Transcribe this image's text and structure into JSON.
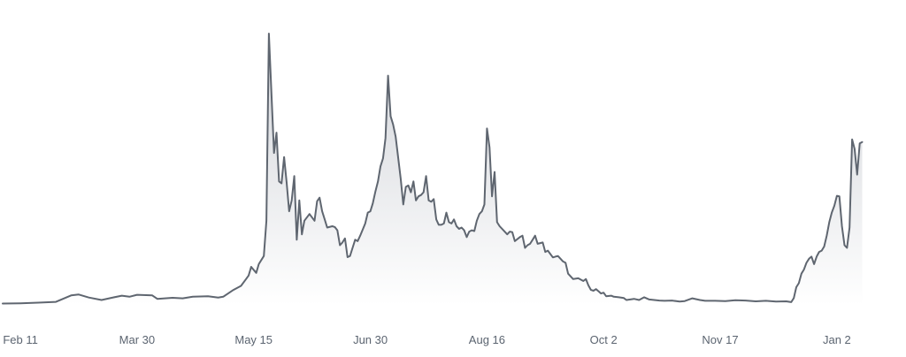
{
  "chart_data": {
    "type": "area",
    "xlabel": "",
    "ylabel": "",
    "grid": false,
    "x_ticks": [
      "Feb 11",
      "Mar 30",
      "May 15",
      "Jun 30",
      "Aug 16",
      "Oct 2",
      "Nov 17",
      "Jan 2"
    ],
    "ylim": [
      0,
      100
    ],
    "x_range_days": [
      -7,
      336
    ],
    "colors": {
      "line": "#5f6670",
      "fill_top": "#c9ccd2",
      "fill_bottom": "#ffffff",
      "tick_text": "#5b6470"
    },
    "series": [
      {
        "points": [
          [
            -7,
            0.5
          ],
          [
            0,
            0.6
          ],
          [
            7,
            0.8
          ],
          [
            14,
            1.1
          ],
          [
            20,
            3.5
          ],
          [
            23,
            3.8
          ],
          [
            27,
            2.7
          ],
          [
            32,
            1.8
          ],
          [
            36,
            2.6
          ],
          [
            40,
            3.4
          ],
          [
            43,
            3.0
          ],
          [
            46,
            3.7
          ],
          [
            52,
            3.5
          ],
          [
            54,
            2.2
          ],
          [
            60,
            2.6
          ],
          [
            64,
            2.4
          ],
          [
            68,
            3.0
          ],
          [
            74,
            3.2
          ],
          [
            78,
            2.7
          ],
          [
            80,
            3.0
          ],
          [
            84,
            5.5
          ],
          [
            87,
            7.0
          ],
          [
            89,
            9.5
          ],
          [
            90,
            10.8
          ],
          [
            91,
            14.0
          ],
          [
            93,
            11.8
          ],
          [
            94,
            15.0
          ],
          [
            96,
            18.0
          ],
          [
            97,
            31.0
          ],
          [
            98,
            100.0
          ],
          [
            100,
            56.0
          ],
          [
            101,
            63.5
          ],
          [
            102,
            45.5
          ],
          [
            103,
            44.8
          ],
          [
            104,
            54.5
          ],
          [
            105,
            45.0
          ],
          [
            106,
            34.5
          ],
          [
            107,
            38.5
          ],
          [
            108,
            47.5
          ],
          [
            109,
            24.0
          ],
          [
            110,
            38.5
          ],
          [
            111,
            26.0
          ],
          [
            112,
            31.0
          ],
          [
            114,
            33.5
          ],
          [
            116,
            31.0
          ],
          [
            117,
            38.2
          ],
          [
            118,
            39.5
          ],
          [
            119,
            34.5
          ],
          [
            120,
            31.5
          ],
          [
            121,
            28.5
          ],
          [
            123,
            29.0
          ],
          [
            124,
            28.7
          ],
          [
            125,
            27.5
          ],
          [
            126,
            22.0
          ],
          [
            127,
            23.0
          ],
          [
            128,
            24.5
          ],
          [
            129,
            17.6
          ],
          [
            130,
            18.0
          ],
          [
            131,
            21.0
          ],
          [
            132,
            24.0
          ],
          [
            133,
            23.5
          ],
          [
            134,
            25.5
          ],
          [
            136,
            30.0
          ],
          [
            137,
            34.0
          ],
          [
            138,
            34.5
          ],
          [
            139,
            37.5
          ],
          [
            140,
            41.8
          ],
          [
            141,
            45.5
          ],
          [
            142,
            51.0
          ],
          [
            143,
            54.0
          ],
          [
            144,
            61.5
          ],
          [
            145,
            84.5
          ],
          [
            146,
            69.5
          ],
          [
            147,
            66.5
          ],
          [
            148,
            62.0
          ],
          [
            150,
            46.5
          ],
          [
            151,
            37.0
          ],
          [
            152,
            43.5
          ],
          [
            153,
            44.0
          ],
          [
            154,
            41.5
          ],
          [
            155,
            45.5
          ],
          [
            156,
            38.5
          ],
          [
            157,
            40.0
          ],
          [
            158,
            40.5
          ],
          [
            159,
            41.5
          ],
          [
            160,
            47.5
          ],
          [
            161,
            38.5
          ],
          [
            162,
            38.0
          ],
          [
            163,
            39.0
          ],
          [
            164,
            31.5
          ],
          [
            165,
            29.5
          ],
          [
            166,
            29.5
          ],
          [
            167,
            30.0
          ],
          [
            168,
            34.0
          ],
          [
            169,
            30.5
          ],
          [
            170,
            30.0
          ],
          [
            171,
            31.5
          ],
          [
            172,
            29.0
          ],
          [
            173,
            28.0
          ],
          [
            174,
            28.5
          ],
          [
            175,
            27.5
          ],
          [
            176,
            25.0
          ],
          [
            177,
            27.0
          ],
          [
            178,
            27.5
          ],
          [
            179,
            27.2
          ],
          [
            180,
            31.0
          ],
          [
            181,
            33.5
          ],
          [
            182,
            34.5
          ],
          [
            183,
            37.0
          ],
          [
            184,
            65.0
          ],
          [
            185,
            58.0
          ],
          [
            186,
            40.0
          ],
          [
            187,
            49.0
          ],
          [
            188,
            30.5
          ],
          [
            189,
            29.0
          ],
          [
            191,
            27.0
          ],
          [
            192,
            26.0
          ],
          [
            193,
            27.0
          ],
          [
            194,
            26.8
          ],
          [
            195,
            23.5
          ],
          [
            197,
            25.0
          ],
          [
            198,
            25.5
          ],
          [
            199,
            21.0
          ],
          [
            200,
            22.0
          ],
          [
            201,
            22.5
          ],
          [
            202,
            24.0
          ],
          [
            203,
            25.5
          ],
          [
            204,
            22.5
          ],
          [
            206,
            23.0
          ],
          [
            207,
            19.5
          ],
          [
            208,
            20.0
          ],
          [
            210,
            17.5
          ],
          [
            211,
            17.8
          ],
          [
            212,
            18.0
          ],
          [
            214,
            16.0
          ],
          [
            215,
            15.5
          ],
          [
            216,
            11.5
          ],
          [
            217,
            10.5
          ],
          [
            218,
            9.5
          ],
          [
            220,
            9.8
          ],
          [
            222,
            8.8
          ],
          [
            223,
            9.5
          ],
          [
            224,
            7.2
          ],
          [
            225,
            5.5
          ],
          [
            226,
            5.2
          ],
          [
            227,
            5.8
          ],
          [
            228,
            5.0
          ],
          [
            229,
            4.2
          ],
          [
            230,
            4.5
          ],
          [
            231,
            3.2
          ],
          [
            233,
            3.4
          ],
          [
            234,
            3.0
          ],
          [
            236,
            2.8
          ],
          [
            238,
            2.5
          ],
          [
            239,
            1.8
          ],
          [
            242,
            2.2
          ],
          [
            244,
            1.8
          ],
          [
            246,
            2.8
          ],
          [
            248,
            2.0
          ],
          [
            250,
            1.8
          ],
          [
            252,
            1.6
          ],
          [
            254,
            1.5
          ],
          [
            257,
            1.6
          ],
          [
            260,
            1.2
          ],
          [
            262,
            1.4
          ],
          [
            265,
            2.4
          ],
          [
            268,
            1.8
          ],
          [
            270,
            1.5
          ],
          [
            274,
            1.5
          ],
          [
            278,
            1.4
          ],
          [
            282,
            1.7
          ],
          [
            286,
            1.6
          ],
          [
            290,
            1.3
          ],
          [
            294,
            1.5
          ],
          [
            298,
            1.2
          ],
          [
            302,
            1.3
          ],
          [
            304,
            1.0
          ],
          [
            305,
            2.5
          ],
          [
            306,
            6.5
          ],
          [
            307,
            8.0
          ],
          [
            308,
            11.5
          ],
          [
            309,
            13.0
          ],
          [
            310,
            15.5
          ],
          [
            311,
            17.0
          ],
          [
            312,
            17.8
          ],
          [
            313,
            15.0
          ],
          [
            314,
            17.8
          ],
          [
            315,
            19.5
          ],
          [
            316,
            20.0
          ],
          [
            317,
            21.5
          ],
          [
            318,
            25.5
          ],
          [
            319,
            30.5
          ],
          [
            320,
            34.0
          ],
          [
            321,
            36.5
          ],
          [
            322,
            40.2
          ],
          [
            323,
            40.0
          ],
          [
            324,
            29.0
          ],
          [
            325,
            22.0
          ],
          [
            326,
            21.0
          ],
          [
            327,
            28.5
          ],
          [
            328,
            61.0
          ],
          [
            329,
            57.5
          ],
          [
            330,
            48.0
          ],
          [
            331,
            59.5
          ],
          [
            332,
            60.0
          ]
        ]
      }
    ]
  }
}
